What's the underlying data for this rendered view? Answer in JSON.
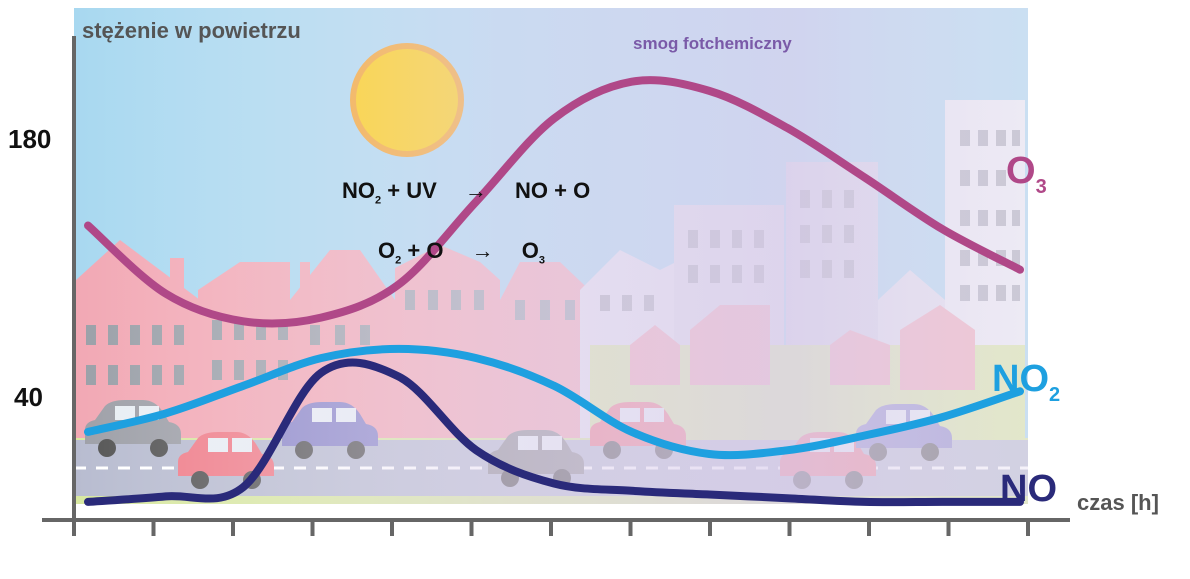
{
  "labels": {
    "y_axis": "stężenie w powietrzu",
    "x_axis": "czas [h]",
    "tick_180": "180",
    "tick_40": "40",
    "smog": "smog fotchemiczny",
    "eq1_a": "NO",
    "eq1_a_sub": "2",
    "eq1_b": " + UV",
    "eq1_arrow": "→",
    "eq1_c": "NO + O",
    "eq2_a": "O",
    "eq2_a_sub": "2",
    "eq2_b": " + O",
    "eq2_arrow": "→",
    "eq2_c": "O",
    "eq2_c_sub": "3",
    "o3_main": "O",
    "o3_sub": "3",
    "no2_main": "NO",
    "no2_sub": "2",
    "no_main": "NO"
  },
  "colors": {
    "sky": "#a8d8f0",
    "smog_haze": "#c8b8e8",
    "buildings": "#f2a8b4",
    "ground": "#d8e8a0",
    "road": "#b8bcd0",
    "o3": "#b04888",
    "no2": "#1ea0e0",
    "no": "#2a2a7a",
    "sun": "#ffcc00",
    "sun_rim": "#f5a020",
    "axis": "#666666"
  },
  "chart_data": {
    "type": "line",
    "y_ticks": [
      40,
      180
    ],
    "series": [
      {
        "name": "O3",
        "values": [
          [
            0,
            132
          ],
          [
            1,
            95
          ],
          [
            2,
            80
          ],
          [
            3,
            82
          ],
          [
            4,
            100
          ],
          [
            5,
            145
          ],
          [
            6,
            190
          ],
          [
            7,
            210
          ],
          [
            8,
            205
          ],
          [
            9,
            185
          ],
          [
            10,
            158
          ],
          [
            11,
            130
          ],
          [
            12,
            108
          ]
        ]
      },
      {
        "name": "NO2",
        "values": [
          [
            0,
            20
          ],
          [
            1,
            30
          ],
          [
            2,
            45
          ],
          [
            3,
            60
          ],
          [
            4,
            65
          ],
          [
            5,
            60
          ],
          [
            6,
            45
          ],
          [
            7,
            20
          ],
          [
            8,
            8
          ],
          [
            9,
            10
          ],
          [
            10,
            18
          ],
          [
            11,
            28
          ],
          [
            12,
            42
          ]
        ]
      },
      {
        "name": "NO",
        "values": [
          [
            0,
            -18
          ],
          [
            1,
            -15
          ],
          [
            2,
            -10
          ],
          [
            3,
            52
          ],
          [
            4,
            50
          ],
          [
            5,
            10
          ],
          [
            6,
            -8
          ],
          [
            7,
            -12
          ],
          [
            8,
            -14
          ],
          [
            9,
            -16
          ],
          [
            10,
            -18
          ],
          [
            11,
            -18
          ],
          [
            12,
            -18
          ]
        ]
      }
    ]
  }
}
